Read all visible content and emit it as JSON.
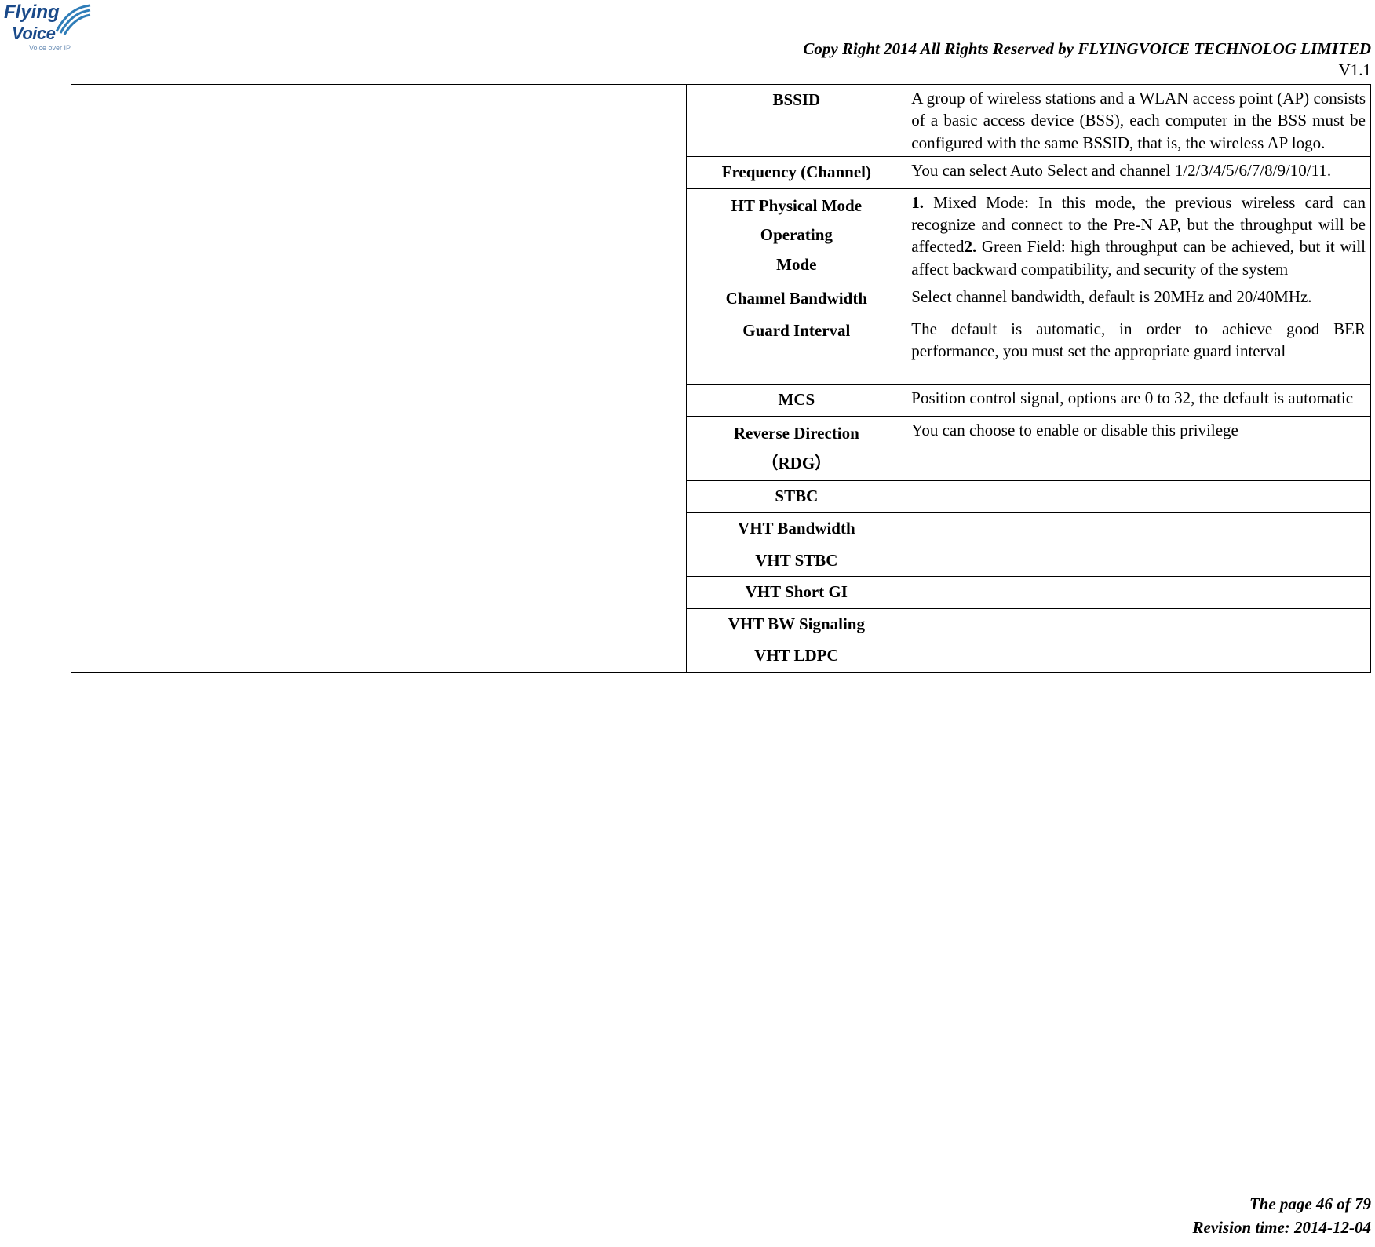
{
  "logo": {
    "line1": "Flying",
    "line2": "Voice",
    "sub": "Voice over IP",
    "arc_color": "#2f7db8"
  },
  "header": {
    "copyright": "Copy Right 2014 All Rights Reserved by FLYINGVOICE TECHNOLOG LIMITED",
    "version": "V1.1"
  },
  "table": {
    "rows": [
      {
        "label": "BSSID",
        "desc": "A group of wireless stations and a WLAN access point (AP) consists of a basic access device (BSS), each computer in the BSS must be configured with the same BSSID, that is, the wireless AP logo."
      },
      {
        "label": "Frequency (Channel)",
        "desc_parts": [
          {
            "text": "You can select Auto Select and channel 1/2/3/4/5/6/7/8/9/10/11."
          }
        ]
      },
      {
        "label_lines": [
          "HT Physical Mode",
          "Operating",
          "Mode"
        ],
        "desc_parts": [
          {
            "bold": "1.",
            "text": " Mixed Mode: In this mode, the previous wireless card can recognize and connect to the Pre-N AP, but the throughput will be affected"
          },
          {
            "br": true
          },
          {
            "bold": "2.",
            "text": " Green Field: high throughput can be achieved, but it will affect backward compatibility, and security of the system"
          }
        ]
      },
      {
        "label": "Channel Bandwidth",
        "desc": "Select channel bandwidth, default is 20MHz and 20/40MHz."
      },
      {
        "label": "Guard Interval",
        "desc": "The default is automatic, in order to achieve good BER performance, you must set the appropriate guard interval",
        "extra_height": true
      },
      {
        "label": "MCS",
        "desc": "Position control signal, options are 0 to 32, the default is automatic"
      },
      {
        "label_lines": [
          "Reverse Direction",
          "（RDG）"
        ],
        "desc": "You can choose to enable or disable this privilege"
      },
      {
        "label": "STBC",
        "desc": ""
      },
      {
        "label": "VHT Bandwidth",
        "desc": ""
      },
      {
        "label": "VHT STBC",
        "desc": ""
      },
      {
        "label": "VHT Short GI",
        "desc": ""
      },
      {
        "label": "VHT BW Signaling",
        "desc": ""
      },
      {
        "label": "VHT LDPC",
        "desc": ""
      }
    ]
  },
  "footer": {
    "page": "The page 46 of 79",
    "revision": "Revision time: 2014-12-04"
  }
}
